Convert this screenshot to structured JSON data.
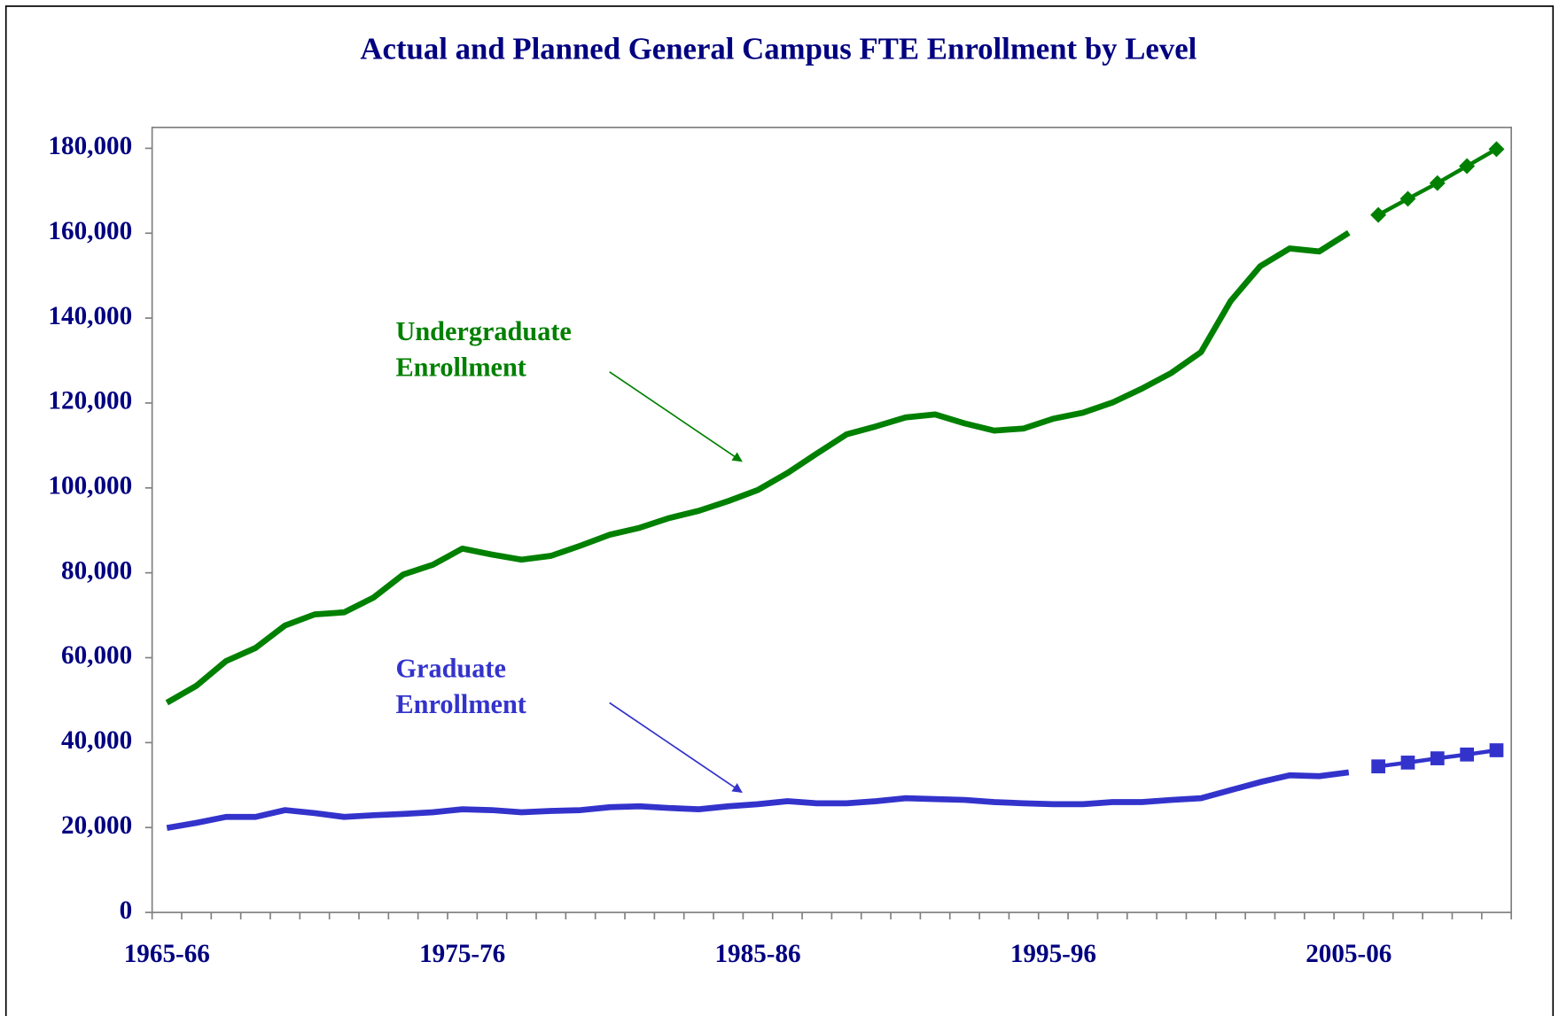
{
  "chart_data": {
    "type": "line",
    "title": "Actual and Planned General Campus FTE Enrollment by Level",
    "categories": [
      "1965-66",
      null,
      null,
      null,
      null,
      null,
      null,
      null,
      null,
      null,
      "1975-76",
      null,
      null,
      null,
      null,
      null,
      null,
      null,
      null,
      null,
      "1985-86",
      null,
      null,
      null,
      null,
      null,
      null,
      null,
      null,
      null,
      "1995-96",
      null,
      null,
      null,
      null,
      null,
      null,
      null,
      null,
      null,
      "2005-06",
      null,
      null,
      null,
      null,
      null
    ],
    "series": [
      {
        "color": "#008000",
        "marker": "none",
        "values": [
          49400,
          53400,
          59200,
          62300,
          67600,
          70200,
          70700,
          74200,
          79600,
          81900,
          85700,
          84300,
          83100,
          84000,
          86400,
          89000,
          90600,
          92900,
          94600,
          96900,
          99500,
          103500,
          108100,
          112600,
          114500,
          116600,
          117300,
          115200,
          113500,
          114000,
          116300,
          117700,
          120100,
          123400,
          127100,
          132000,
          144000,
          152200,
          156400,
          155700,
          160100,
          null,
          null,
          null,
          null,
          null
        ]
      },
      {
        "color": "#008000",
        "marker": "diamond",
        "values": [
          null,
          null,
          null,
          null,
          null,
          null,
          null,
          null,
          null,
          null,
          null,
          null,
          null,
          null,
          null,
          null,
          null,
          null,
          null,
          null,
          null,
          null,
          null,
          null,
          null,
          null,
          null,
          null,
          null,
          null,
          null,
          null,
          null,
          null,
          null,
          null,
          null,
          null,
          null,
          null,
          null,
          164300,
          168100,
          171800,
          175800,
          179800
        ]
      },
      {
        "color": "#3333cc",
        "marker": "none",
        "values": [
          19900,
          21100,
          22500,
          22500,
          24100,
          23400,
          22500,
          22900,
          23200,
          23600,
          24300,
          24100,
          23600,
          23900,
          24100,
          24800,
          25000,
          24600,
          24300,
          25000,
          25500,
          26200,
          25700,
          25700,
          26200,
          26900,
          26700,
          26500,
          26000,
          25700,
          25500,
          25500,
          26000,
          26000,
          26500,
          26900,
          28800,
          30700,
          32300,
          32100,
          33000,
          null,
          null,
          null,
          null,
          null
        ]
      },
      {
        "color": "#3333cc",
        "marker": "square",
        "values": [
          null,
          null,
          null,
          null,
          null,
          null,
          null,
          null,
          null,
          null,
          null,
          null,
          null,
          null,
          null,
          null,
          null,
          null,
          null,
          null,
          null,
          null,
          null,
          null,
          null,
          null,
          null,
          null,
          null,
          null,
          null,
          null,
          null,
          null,
          null,
          null,
          null,
          null,
          null,
          null,
          null,
          34400,
          35300,
          36300,
          37200,
          38200
        ]
      }
    ],
    "annotations": [
      {
        "lines": [
          "Undergraduate",
          "Enrollment"
        ],
        "color": "#008000"
      },
      {
        "lines": [
          "Graduate",
          "Enrollment"
        ],
        "color": "#3333cc"
      }
    ],
    "ylim": [
      0,
      180000
    ],
    "yticks": [
      0,
      {
        "value": 20000,
        "label": "20,000"
      },
      {
        "value": 40000,
        "label": "40,000"
      },
      {
        "value": 60000,
        "label": "60,000"
      },
      {
        "value": 80000,
        "label": "80,000"
      },
      {
        "value": 100000,
        "label": "100,000"
      },
      {
        "value": 120000,
        "label": "120,000"
      },
      {
        "value": 140000,
        "label": "140,000"
      },
      {
        "value": 160000,
        "label": "160,000"
      },
      {
        "value": 180000,
        "label": "180,000"
      }
    ],
    "grid": false
  }
}
